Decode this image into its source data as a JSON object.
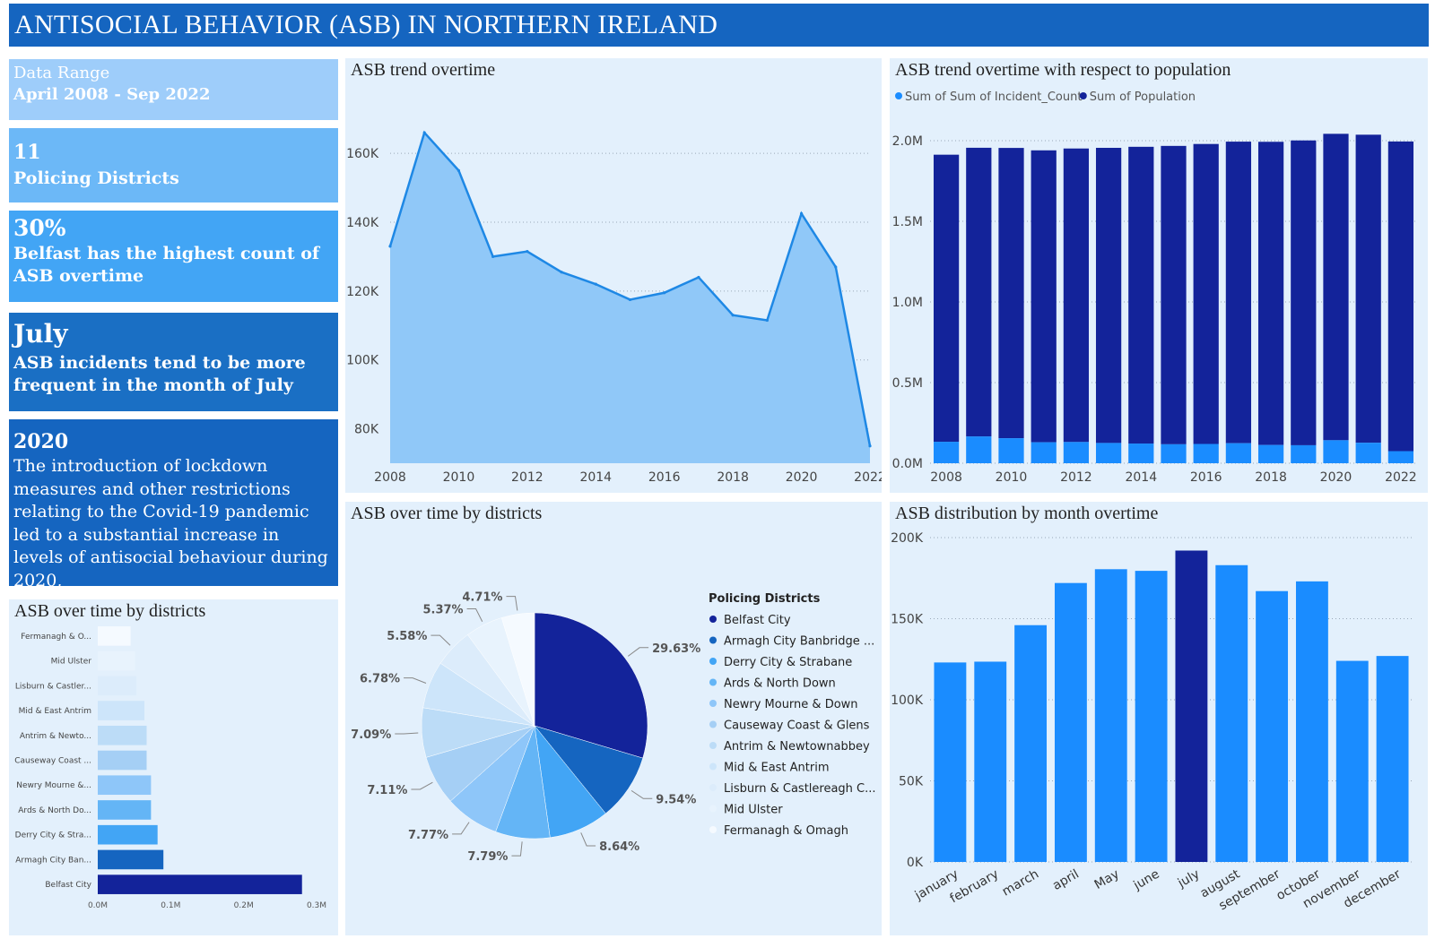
{
  "header": {
    "title": "ANTISOCIAL BEHAVIOR (ASB) IN NORTHERN IRELAND"
  },
  "kpis": {
    "range": {
      "label": "Data Range",
      "value": "April 2008 - Sep 2022"
    },
    "districts": {
      "value": "11",
      "label": "Policing Districts"
    },
    "belfast": {
      "value": "30%",
      "label": "Belfast has the highest count of ASB overtime"
    },
    "month": {
      "value": "July",
      "label": "ASB incidents tend to be more frequent in the month of July"
    },
    "covid": {
      "value": "2020",
      "text": "The introduction of lockdown measures and other restrictions relating to the Covid-19 pandemic led to a substantial increase in levels of antisocial behaviour during 2020,"
    }
  },
  "colors": {
    "navy": "#13239a",
    "blue": "#1565c0",
    "mid": "#1e88e5",
    "bright": "#1a8cff",
    "area_fill": "#90c8f8",
    "area_line": "#1e88e5",
    "panel_bg": "#e3f0fc"
  },
  "chart_data": [
    {
      "id": "trend",
      "type": "area",
      "title": "ASB trend overtime",
      "x": [
        2008,
        2009,
        2010,
        2011,
        2012,
        2013,
        2014,
        2015,
        2016,
        2017,
        2018,
        2019,
        2020,
        2021,
        2022
      ],
      "values": [
        133000,
        166000,
        155000,
        130000,
        131500,
        125500,
        122000,
        117500,
        119500,
        124000,
        113000,
        111500,
        142500,
        127000,
        75000
      ],
      "x_ticks": [
        "2008",
        "2010",
        "2012",
        "2014",
        "2016",
        "2018",
        "2020",
        "2022"
      ],
      "y_ticks": [
        "80K",
        "100K",
        "120K",
        "140K",
        "160K"
      ],
      "ylim": [
        70000,
        172000
      ],
      "grid": true
    },
    {
      "id": "population",
      "type": "bar",
      "title": "ASB trend overtime with respect to population",
      "legend": [
        "Sum of Sum of Incident_Count",
        "Sum of Population"
      ],
      "x": [
        2008,
        2009,
        2010,
        2011,
        2012,
        2013,
        2014,
        2015,
        2016,
        2017,
        2018,
        2019,
        2020,
        2021,
        2022
      ],
      "series": [
        {
          "name": "Sum of Sum of Incident_Count",
          "values": [
            133000,
            166000,
            155000,
            130000,
            131500,
            125500,
            122000,
            117500,
            119500,
            124000,
            113000,
            111500,
            142500,
            127000,
            75000
          ]
        },
        {
          "name": "Sum of Population",
          "values": [
            1780000,
            1790000,
            1800000,
            1810000,
            1820000,
            1830000,
            1840000,
            1850000,
            1860000,
            1870000,
            1880000,
            1890000,
            1900000,
            1910000,
            1920000
          ]
        }
      ],
      "x_ticks": [
        "2008",
        "2010",
        "2012",
        "2014",
        "2016",
        "2018",
        "2020",
        "2022"
      ],
      "y_ticks": [
        "0.0M",
        "0.5M",
        "1.0M",
        "1.5M",
        "2.0M"
      ],
      "ylim": [
        0,
        2150000
      ],
      "grid": true
    },
    {
      "id": "pie",
      "type": "pie",
      "title": "ASB over time by districts",
      "legend_title": "Policing Districts",
      "categories": [
        "Belfast City",
        "Armagh City Banbridge ...",
        "Derry City & Strabane",
        "Ards & North Down",
        "Newry Mourne & Down",
        "Causeway Coast & Glens",
        "Antrim & Newtownabbey",
        "Mid & East Antrim",
        "Lisburn & Castlereagh C...",
        "Mid Ulster",
        "Fermanagh & Omagh"
      ],
      "values": [
        29.63,
        9.54,
        8.64,
        7.79,
        7.77,
        7.11,
        7.09,
        6.78,
        5.58,
        5.37,
        4.71
      ],
      "labels": [
        "29.63%",
        "9.54%",
        "8.64%",
        "7.79%",
        "7.77%",
        "7.11%",
        "7.09%",
        "6.78%",
        "5.58%",
        "5.37%",
        "4.71%"
      ],
      "colors": [
        "#13239a",
        "#1565c0",
        "#42a5f5",
        "#64b5f6",
        "#8ec6f9",
        "#a5cff5",
        "#bcdcf7",
        "#cde5fa",
        "#dcecfb",
        "#e8f3fd",
        "#f5faff"
      ]
    },
    {
      "id": "districts-bar",
      "type": "bar",
      "title": "ASB over time by districts",
      "orientation": "horizontal",
      "categories": [
        "Fermanagh & O...",
        "Mid Ulster",
        "Lisburn & Castler...",
        "Mid & East Antrim",
        "Antrim & Newto...",
        "Causeway Coast ...",
        "Newry Mourne &...",
        "Ards & North Do...",
        "Derry City & Stra...",
        "Armagh City Ban...",
        "Belfast City"
      ],
      "values": [
        45000,
        51000,
        53000,
        64000,
        67000,
        67000,
        73000,
        73000,
        82000,
        90000,
        280000
      ],
      "colors": [
        "#f5faff",
        "#e8f3fd",
        "#dcecfb",
        "#cde5fa",
        "#bcdcf7",
        "#a5cff5",
        "#8ec6f9",
        "#64b5f6",
        "#42a5f5",
        "#1565c0",
        "#13239a"
      ],
      "x_ticks": [
        "0.0M",
        "0.1M",
        "0.2M",
        "0.3M"
      ],
      "xlim": [
        0,
        300000
      ]
    },
    {
      "id": "month",
      "type": "bar",
      "title": "ASB distribution by month overtime",
      "categories": [
        "january",
        "february",
        "march",
        "april",
        "May",
        "june",
        "july",
        "august",
        "september",
        "october",
        "november",
        "december"
      ],
      "values": [
        123000,
        123500,
        146000,
        172000,
        180500,
        179500,
        192000,
        183000,
        167000,
        173000,
        124000,
        127000
      ],
      "highlight": "july",
      "y_ticks": [
        "0K",
        "50K",
        "100K",
        "150K",
        "200K"
      ],
      "ylim": [
        0,
        200000
      ],
      "grid": true
    }
  ]
}
